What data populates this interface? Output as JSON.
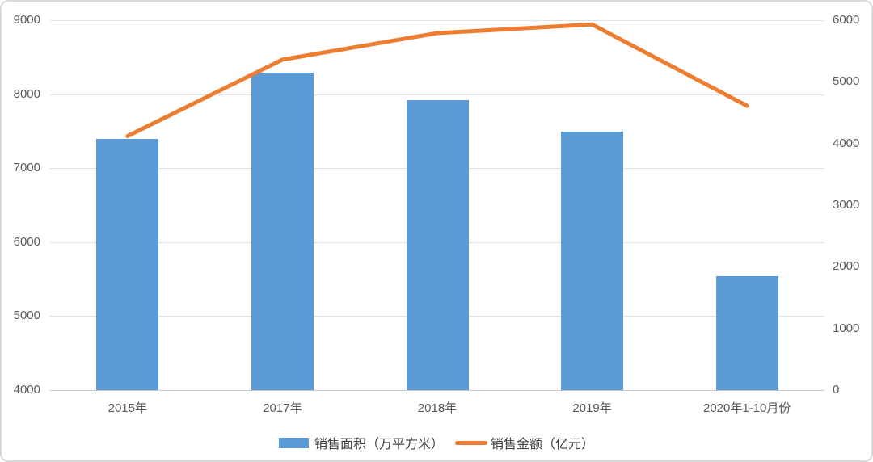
{
  "chart_data": {
    "type": "bar+line combo",
    "title": "",
    "categories": [
      "2015年",
      "2017年",
      "2018年",
      "2019年",
      "2020年1-10月份"
    ],
    "series": [
      {
        "name": "销售面积（万平方米）",
        "type": "bar",
        "axis": "left",
        "color": "#5B9BD5",
        "values": [
          7400,
          8290,
          7920,
          7490,
          5540
        ]
      },
      {
        "name": "销售金额（亿元）",
        "type": "line",
        "axis": "right",
        "color": "#ED7D31",
        "values": [
          4120,
          5360,
          5790,
          5930,
          4610
        ]
      }
    ],
    "left_axis": {
      "min": 4000,
      "max": 9000,
      "tick_labels": [
        "9000",
        "8000",
        "7000",
        "6000",
        "5000",
        "4000"
      ]
    },
    "right_axis": {
      "min": 0,
      "max": 6000,
      "tick_labels": [
        "6000",
        "5000",
        "4000",
        "3000",
        "2000",
        "1000",
        "0"
      ]
    },
    "grid": true,
    "legend_position": "bottom"
  },
  "colors": {
    "grid": "#e2e2e2",
    "baseline": "#c8c8c8",
    "axis_text": "#595959",
    "legend_text": "#404040",
    "background": "#ffffff",
    "border": "#d9d9d9"
  }
}
